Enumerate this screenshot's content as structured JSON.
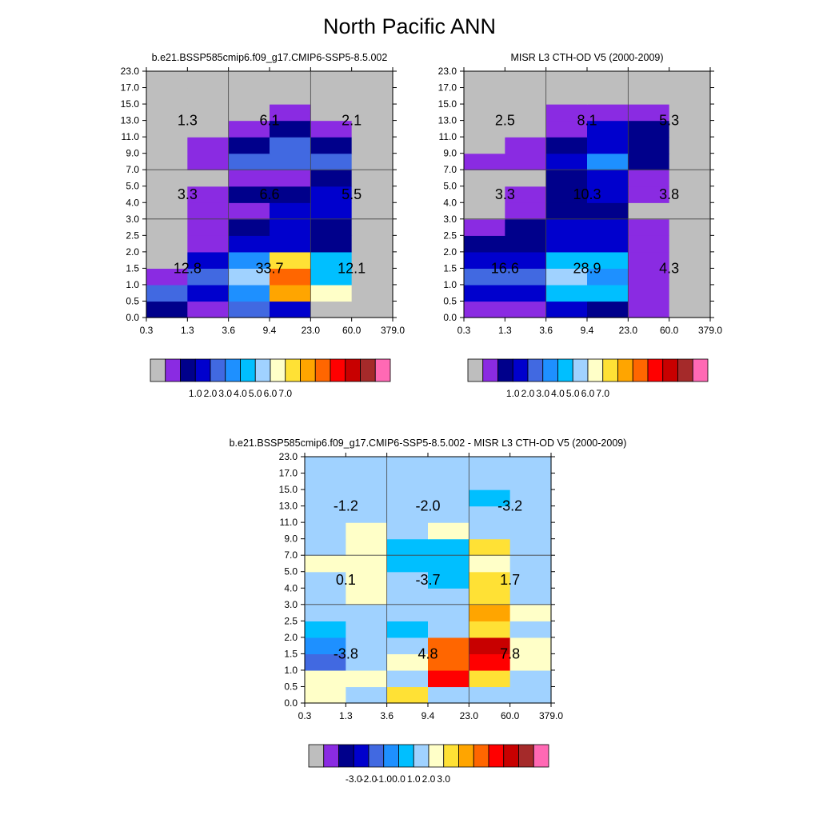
{
  "title": "North Pacific ANN",
  "colors": {
    "abs": [
      "#bebebe",
      "#8a2be2",
      "#00008b",
      "#0000cd",
      "#4169e1",
      "#1e90ff",
      "#00bfff",
      "#a0d2ff",
      "#ffffc8",
      "#ffe135",
      "#ffa500",
      "#ff6600",
      "#ff0000",
      "#c80000",
      "#a52a2a",
      "#ff69b4"
    ],
    "diff": [
      "#bebebe",
      "#8a2be2",
      "#00008b",
      "#0000cd",
      "#4169e1",
      "#1e90ff",
      "#00bfff",
      "#a0d2ff",
      "#ffffc8",
      "#ffe135",
      "#ffa500",
      "#ff6600",
      "#ff0000",
      "#c80000",
      "#a52a2a",
      "#ff69b4"
    ]
  },
  "chart_data": [
    {
      "type": "heatmap",
      "title": "b.e21.BSSP585cmip6.f09_g17.CMIP6-SSP5-8.5.002",
      "x_ticks": [
        "0.3",
        "1.3",
        "3.6",
        "9.4",
        "23.0",
        "60.0",
        "379.0"
      ],
      "y_ticks": [
        "0.0",
        "0.5",
        "1.0",
        "1.5",
        "2.0",
        "2.5",
        "3.0",
        "4.0",
        "5.0",
        "7.0",
        "9.0",
        "11.0",
        "13.0",
        "15.0",
        "17.0",
        "23.0"
      ],
      "colorbar_labels": [
        "1.0",
        "2.0",
        "3.0",
        "4.0",
        "5.0",
        "6.0",
        "7.0"
      ],
      "grid_index": [
        [
          2,
          1,
          4,
          3,
          0,
          0
        ],
        [
          4,
          3,
          5,
          10,
          8,
          0
        ],
        [
          1,
          4,
          7,
          11,
          6,
          0
        ],
        [
          0,
          3,
          5,
          9,
          6,
          0
        ],
        [
          0,
          1,
          3,
          3,
          2,
          0
        ],
        [
          0,
          1,
          2,
          3,
          2,
          0
        ],
        [
          0,
          1,
          1,
          3,
          3,
          0
        ],
        [
          0,
          1,
          2,
          2,
          3,
          0
        ],
        [
          0,
          0,
          1,
          1,
          2,
          0
        ],
        [
          0,
          1,
          4,
          4,
          4,
          0
        ],
        [
          0,
          1,
          2,
          4,
          2,
          0
        ],
        [
          0,
          0,
          1,
          2,
          1,
          0
        ],
        [
          0,
          0,
          0,
          1,
          0,
          0
        ],
        [
          0,
          0,
          0,
          0,
          0,
          0
        ],
        [
          0,
          0,
          0,
          0,
          0,
          0
        ]
      ],
      "box_totals": [
        {
          "value": "1.3",
          "col": 0,
          "row": 0
        },
        {
          "value": "6.1",
          "col": 1,
          "row": 0
        },
        {
          "value": "2.1",
          "col": 2,
          "row": 0
        },
        {
          "value": "3.3",
          "col": 0,
          "row": 1
        },
        {
          "value": "6.6",
          "col": 1,
          "row": 1
        },
        {
          "value": "5.5",
          "col": 2,
          "row": 1
        },
        {
          "value": "12.8",
          "col": 0,
          "row": 2
        },
        {
          "value": "33.7",
          "col": 1,
          "row": 2
        },
        {
          "value": "12.1",
          "col": 2,
          "row": 2
        }
      ]
    },
    {
      "type": "heatmap",
      "title": "MISR L3 CTH-OD V5 (2000-2009)",
      "x_ticks": [
        "0.3",
        "1.3",
        "3.6",
        "9.4",
        "23.0",
        "60.0",
        "379.0"
      ],
      "y_ticks": [
        "0.0",
        "0.5",
        "1.0",
        "1.5",
        "2.0",
        "2.5",
        "3.0",
        "4.0",
        "5.0",
        "7.0",
        "9.0",
        "11.0",
        "13.0",
        "15.0",
        "17.0",
        "23.0"
      ],
      "colorbar_labels": [
        "1.0",
        "2.0",
        "3.0",
        "4.0",
        "5.0",
        "6.0",
        "7.0"
      ],
      "grid_index": [
        [
          1,
          1,
          3,
          2,
          1,
          0
        ],
        [
          3,
          3,
          6,
          6,
          1,
          0
        ],
        [
          4,
          4,
          7,
          5,
          1,
          0
        ],
        [
          3,
          3,
          6,
          6,
          1,
          0
        ],
        [
          2,
          2,
          3,
          3,
          1,
          0
        ],
        [
          1,
          2,
          3,
          3,
          1,
          0
        ],
        [
          0,
          1,
          2,
          2,
          0,
          0
        ],
        [
          0,
          1,
          2,
          3,
          1,
          0
        ],
        [
          0,
          0,
          2,
          3,
          1,
          0
        ],
        [
          1,
          1,
          3,
          5,
          2,
          0
        ],
        [
          0,
          1,
          2,
          3,
          2,
          0
        ],
        [
          0,
          0,
          1,
          3,
          2,
          0
        ],
        [
          0,
          0,
          1,
          1,
          1,
          0
        ],
        [
          0,
          0,
          0,
          0,
          0,
          0
        ],
        [
          0,
          0,
          0,
          0,
          0,
          0
        ]
      ],
      "box_totals": [
        {
          "value": "2.5",
          "col": 0,
          "row": 0
        },
        {
          "value": "8.1",
          "col": 1,
          "row": 0
        },
        {
          "value": "5.3",
          "col": 2,
          "row": 0
        },
        {
          "value": "3.3",
          "col": 0,
          "row": 1
        },
        {
          "value": "10.3",
          "col": 1,
          "row": 1
        },
        {
          "value": "3.8",
          "col": 2,
          "row": 1
        },
        {
          "value": "16.6",
          "col": 0,
          "row": 2
        },
        {
          "value": "28.9",
          "col": 1,
          "row": 2
        },
        {
          "value": "4.3",
          "col": 2,
          "row": 2
        }
      ]
    },
    {
      "type": "heatmap",
      "title": "b.e21.BSSP585cmip6.f09_g17.CMIP6-SSP5-8.5.002 - MISR L3 CTH-OD V5 (2000-2009)",
      "x_ticks": [
        "0.3",
        "1.3",
        "3.6",
        "9.4",
        "23.0",
        "60.0",
        "379.0"
      ],
      "y_ticks": [
        "0.0",
        "0.5",
        "1.0",
        "1.5",
        "2.0",
        "2.5",
        "3.0",
        "4.0",
        "5.0",
        "7.0",
        "9.0",
        "11.0",
        "13.0",
        "15.0",
        "17.0",
        "23.0"
      ],
      "colorbar_labels": [
        "-3.0",
        "-2.0",
        "-1.0",
        "0.0",
        "1.0",
        "2.0",
        "3.0"
      ],
      "grid_index": [
        [
          8,
          7,
          9,
          7,
          7,
          7
        ],
        [
          8,
          8,
          7,
          12,
          9,
          7
        ],
        [
          4,
          7,
          8,
          11,
          12,
          8
        ],
        [
          5,
          7,
          7,
          11,
          13,
          8
        ],
        [
          6,
          7,
          6,
          7,
          9,
          7
        ],
        [
          7,
          7,
          7,
          7,
          10,
          8
        ],
        [
          7,
          8,
          7,
          7,
          9,
          7
        ],
        [
          7,
          8,
          7,
          6,
          9,
          7
        ],
        [
          8,
          8,
          6,
          6,
          8,
          7
        ],
        [
          7,
          8,
          6,
          6,
          9,
          7
        ],
        [
          7,
          8,
          7,
          8,
          7,
          7
        ],
        [
          7,
          7,
          7,
          7,
          7,
          7
        ],
        [
          7,
          7,
          7,
          7,
          6,
          7
        ],
        [
          7,
          7,
          7,
          7,
          7,
          7
        ],
        [
          7,
          7,
          7,
          7,
          7,
          7
        ]
      ],
      "box_totals": [
        {
          "value": "-1.2",
          "col": 0,
          "row": 0
        },
        {
          "value": "-2.0",
          "col": 1,
          "row": 0
        },
        {
          "value": "-3.2",
          "col": 2,
          "row": 0
        },
        {
          "value": "0.1",
          "col": 0,
          "row": 1
        },
        {
          "value": "-3.7",
          "col": 1,
          "row": 1
        },
        {
          "value": "1.7",
          "col": 2,
          "row": 1
        },
        {
          "value": "-3.8",
          "col": 0,
          "row": 2
        },
        {
          "value": "4.8",
          "col": 1,
          "row": 2
        },
        {
          "value": "7.8",
          "col": 2,
          "row": 2
        }
      ]
    }
  ]
}
